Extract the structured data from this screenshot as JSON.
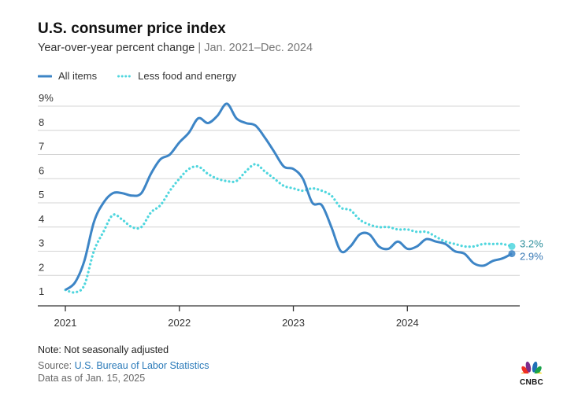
{
  "header": {
    "title": "U.S. consumer price index",
    "subtitle_main": "Year-over-year percent change",
    "subtitle_sep": " | ",
    "subtitle_range": "Jan. 2021–Dec. 2024"
  },
  "legend": {
    "all_items": "All items",
    "core": "Less food and energy"
  },
  "colors": {
    "all_items": "#3d85c6",
    "core": "#4fd6de",
    "grid": "#d4d4d4",
    "axis": "#333333",
    "end_label_all": "#3a7ab6",
    "end_label_core": "#2e8f9c"
  },
  "chart_data": {
    "type": "line",
    "title": "U.S. consumer price index",
    "subtitle": "Year-over-year percent change | Jan. 2021–Dec. 2024",
    "xlabel": "",
    "ylabel": "",
    "ylim": [
      1,
      9
    ],
    "yticks": [
      "1",
      "2",
      "3",
      "4",
      "5",
      "6",
      "7",
      "8",
      "9%"
    ],
    "ytick_values": [
      1,
      2,
      3,
      4,
      5,
      6,
      7,
      8,
      9
    ],
    "xticks": [
      "2021",
      "2022",
      "2023",
      "2024"
    ],
    "x_start": "Jan. 2021",
    "x_end": "Dec. 2024",
    "x_tick_month_index": [
      0,
      12,
      24,
      36
    ],
    "series": [
      {
        "name": "All items",
        "style": "solid",
        "values": [
          1.4,
          1.7,
          2.6,
          4.2,
          5.0,
          5.4,
          5.4,
          5.3,
          5.4,
          6.2,
          6.8,
          7.0,
          7.5,
          7.9,
          8.5,
          8.3,
          8.6,
          9.1,
          8.5,
          8.3,
          8.2,
          7.7,
          7.1,
          6.5,
          6.4,
          6.0,
          5.0,
          4.9,
          4.0,
          3.0,
          3.2,
          3.7,
          3.7,
          3.2,
          3.1,
          3.4,
          3.1,
          3.2,
          3.5,
          3.4,
          3.3,
          3.0,
          2.9,
          2.5,
          2.4,
          2.6,
          2.7,
          2.9
        ],
        "end_label": "2.9%"
      },
      {
        "name": "Less food and energy",
        "style": "dotted",
        "values": [
          1.4,
          1.3,
          1.6,
          3.0,
          3.8,
          4.5,
          4.3,
          4.0,
          4.0,
          4.6,
          4.9,
          5.5,
          6.0,
          6.4,
          6.5,
          6.2,
          6.0,
          5.9,
          5.9,
          6.3,
          6.6,
          6.3,
          6.0,
          5.7,
          5.6,
          5.5,
          5.6,
          5.5,
          5.3,
          4.8,
          4.7,
          4.3,
          4.1,
          4.0,
          4.0,
          3.9,
          3.9,
          3.8,
          3.8,
          3.6,
          3.4,
          3.3,
          3.2,
          3.2,
          3.3,
          3.3,
          3.3,
          3.2
        ],
        "end_label": "3.2%"
      }
    ]
  },
  "footer": {
    "note": "Note: Not seasonally adjusted",
    "source_prefix": "Source: ",
    "source_link": "U.S. Bureau of Labor Statistics",
    "data_as_of": "Data as of Jan. 15, 2025",
    "logo_text": "CNBC"
  }
}
